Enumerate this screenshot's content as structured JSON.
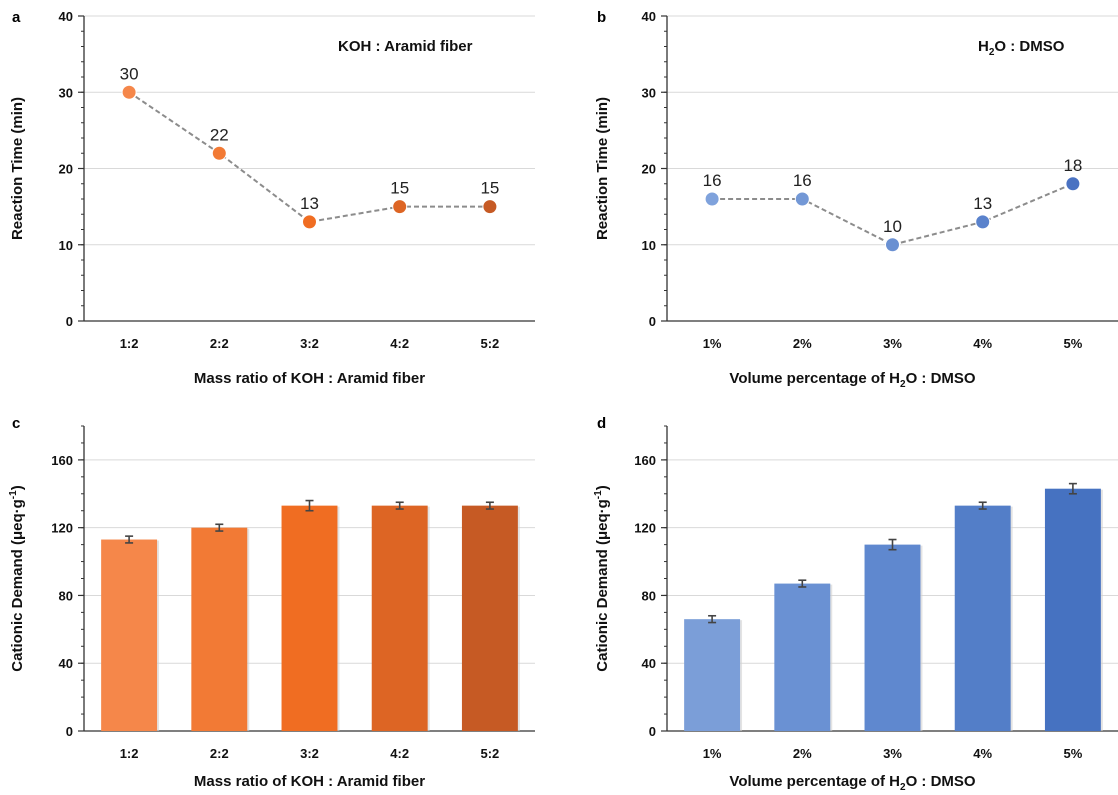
{
  "chart_data": [
    {
      "panel": "a",
      "type": "line",
      "categories": [
        "1:2",
        "2:2",
        "3:2",
        "4:2",
        "5:2"
      ],
      "values": [
        30,
        22,
        13,
        15,
        15
      ],
      "data_labels": [
        "30",
        "22",
        "13",
        "15",
        "15"
      ],
      "annotation": "KOH : Aramid fiber",
      "xlabel": "Mass ratio of KOH : Aramid fiber",
      "ylabel": "Reaction Time (min)",
      "ylim": [
        0,
        40
      ],
      "yticks": [
        0,
        10,
        20,
        30,
        40
      ],
      "grid": true,
      "point_colors": [
        "#f5874a",
        "#f27a35",
        "#f06d22",
        "#dd6524",
        "#c65a24"
      ],
      "line_color": "#8c8c8c"
    },
    {
      "panel": "b",
      "type": "line",
      "categories": [
        "1%",
        "2%",
        "3%",
        "4%",
        "5%"
      ],
      "values": [
        16,
        16,
        10,
        13,
        18
      ],
      "data_labels": [
        "16",
        "16",
        "10",
        "13",
        "18"
      ],
      "annotation": {
        "pre": "H",
        "sub": "2",
        "post": "O : DMSO"
      },
      "xlabel": {
        "pre": "Volume percentage of H",
        "sub": "2",
        "post": "O : DMSO"
      },
      "ylabel": "Reaction Time (min)",
      "ylim": [
        0,
        40
      ],
      "yticks": [
        0,
        10,
        20,
        30,
        40
      ],
      "grid": true,
      "point_colors": [
        "#7fa2dc",
        "#7398d6",
        "#6a90d2",
        "#5a82cc",
        "#4a72c2"
      ],
      "line_color": "#8c8c8c"
    },
    {
      "panel": "c",
      "type": "bar",
      "categories": [
        "1:2",
        "2:2",
        "3:2",
        "4:2",
        "5:2"
      ],
      "values": [
        113,
        120,
        133,
        133,
        133
      ],
      "errors": [
        2,
        2,
        3,
        2,
        2
      ],
      "xlabel": "Mass ratio of KOH : Aramid fiber",
      "ylabel": {
        "pre": "Cationic Demand (μeq·g",
        "sup": "-1",
        "post": ")"
      },
      "ylim": [
        0,
        180
      ],
      "yticks": [
        0,
        40,
        80,
        120,
        160
      ],
      "grid": true,
      "bar_colors": [
        "#f5874a",
        "#f27a35",
        "#f06d22",
        "#dd6524",
        "#c65a24"
      ]
    },
    {
      "panel": "d",
      "type": "bar",
      "categories": [
        "1%",
        "2%",
        "3%",
        "4%",
        "5%"
      ],
      "values": [
        66,
        87,
        110,
        133,
        143
      ],
      "errors": [
        2,
        2,
        3,
        2,
        3
      ],
      "xlabel": {
        "pre": "Volume percentage of H",
        "sub": "2",
        "post": "O : DMSO"
      },
      "ylabel": {
        "pre": "Cationic Demand (μeq·g",
        "sup": "-1",
        "post": ")"
      },
      "ylim": [
        0,
        180
      ],
      "yticks": [
        0,
        40,
        80,
        120,
        160
      ],
      "grid": true,
      "bar_colors": [
        "#7b9ed8",
        "#6a91d3",
        "#5f88cf",
        "#537ec8",
        "#4672c1"
      ]
    }
  ]
}
